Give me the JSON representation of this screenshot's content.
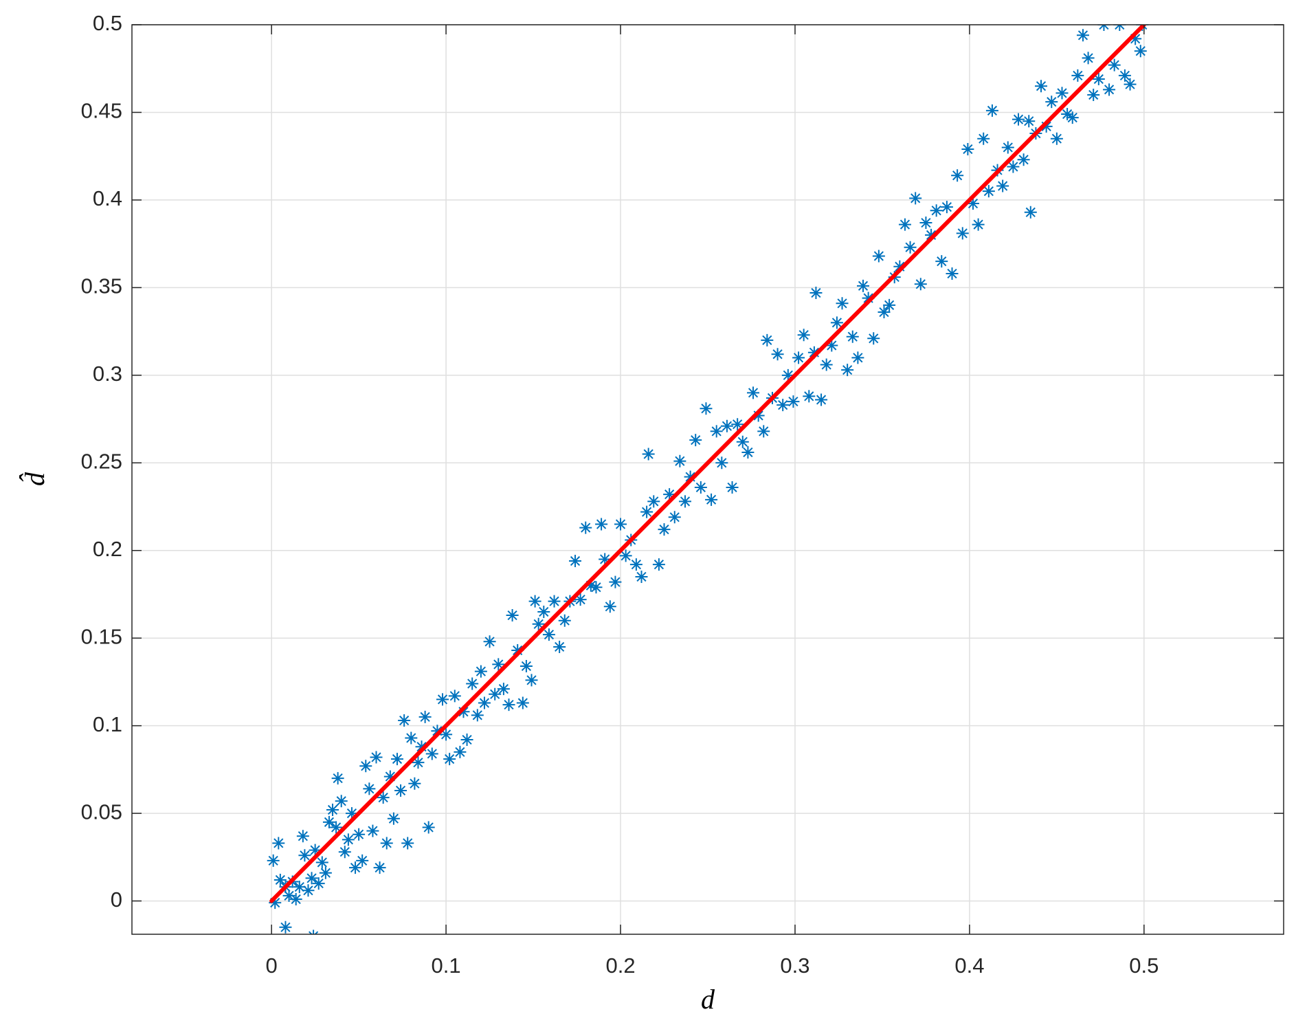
{
  "chart_data": {
    "type": "scatter",
    "xlabel": "d",
    "ylabel": "d̂",
    "xlim": [
      -0.08,
      0.58
    ],
    "ylim": [
      -0.019,
      0.5
    ],
    "xticks": [
      0,
      0.1,
      0.2,
      0.3,
      0.4,
      0.5
    ],
    "yticks": [
      0,
      0.05,
      0.1,
      0.15,
      0.2,
      0.25,
      0.3,
      0.35,
      0.4,
      0.45,
      0.5
    ],
    "grid": true,
    "series": [
      {
        "color": "#0072bd",
        "marker": "asterisk",
        "x": [
          0.001,
          0.002,
          0.004,
          0.005,
          0.008,
          0.008,
          0.01,
          0.012,
          0.014,
          0.016,
          0.018,
          0.019,
          0.021,
          0.023,
          0.024,
          0.025,
          0.027,
          0.029,
          0.031,
          0.033,
          0.035,
          0.037,
          0.038,
          0.04,
          0.042,
          0.044,
          0.046,
          0.048,
          0.05,
          0.052,
          0.054,
          0.056,
          0.058,
          0.06,
          0.062,
          0.064,
          0.066,
          0.068,
          0.07,
          0.072,
          0.074,
          0.076,
          0.078,
          0.08,
          0.082,
          0.084,
          0.086,
          0.088,
          0.09,
          0.092,
          0.095,
          0.098,
          0.1,
          0.102,
          0.105,
          0.108,
          0.11,
          0.112,
          0.115,
          0.118,
          0.12,
          0.122,
          0.125,
          0.128,
          0.13,
          0.133,
          0.136,
          0.138,
          0.141,
          0.144,
          0.146,
          0.149,
          0.151,
          0.153,
          0.156,
          0.159,
          0.162,
          0.165,
          0.168,
          0.171,
          0.174,
          0.177,
          0.18,
          0.183,
          0.186,
          0.189,
          0.191,
          0.194,
          0.197,
          0.2,
          0.203,
          0.206,
          0.209,
          0.212,
          0.215,
          0.216,
          0.219,
          0.222,
          0.225,
          0.228,
          0.231,
          0.234,
          0.237,
          0.24,
          0.243,
          0.246,
          0.249,
          0.252,
          0.255,
          0.258,
          0.261,
          0.264,
          0.267,
          0.27,
          0.273,
          0.276,
          0.279,
          0.282,
          0.284,
          0.287,
          0.29,
          0.293,
          0.296,
          0.299,
          0.302,
          0.305,
          0.308,
          0.311,
          0.312,
          0.315,
          0.318,
          0.321,
          0.324,
          0.327,
          0.33,
          0.333,
          0.336,
          0.339,
          0.342,
          0.345,
          0.348,
          0.351,
          0.354,
          0.357,
          0.36,
          0.363,
          0.366,
          0.369,
          0.372,
          0.375,
          0.378,
          0.381,
          0.384,
          0.387,
          0.39,
          0.393,
          0.396,
          0.399,
          0.402,
          0.405,
          0.408,
          0.411,
          0.413,
          0.416,
          0.419,
          0.422,
          0.425,
          0.428,
          0.431,
          0.434,
          0.435,
          0.438,
          0.441,
          0.444,
          0.447,
          0.45,
          0.453,
          0.456,
          0.459,
          0.462,
          0.465,
          0.468,
          0.471,
          0.474,
          0.477,
          0.48,
          0.483,
          0.486,
          0.489,
          0.492,
          0.495,
          0.498,
          0.499
        ],
        "values": [
          0.023,
          -0.001,
          0.033,
          0.012,
          0.008,
          -0.015,
          0.003,
          0.011,
          0.001,
          0.008,
          0.037,
          0.026,
          0.006,
          0.013,
          -0.02,
          0.029,
          0.01,
          0.022,
          0.016,
          0.045,
          0.052,
          0.042,
          0.07,
          0.057,
          0.028,
          0.035,
          0.05,
          0.019,
          0.038,
          0.023,
          0.077,
          0.064,
          0.04,
          0.082,
          0.019,
          0.059,
          0.033,
          0.071,
          0.047,
          0.081,
          0.063,
          0.103,
          0.033,
          0.093,
          0.067,
          0.079,
          0.088,
          0.105,
          0.042,
          0.084,
          0.097,
          0.115,
          0.095,
          0.081,
          0.117,
          0.085,
          0.108,
          0.092,
          0.124,
          0.106,
          0.131,
          0.113,
          0.148,
          0.118,
          0.135,
          0.121,
          0.112,
          0.163,
          0.143,
          0.113,
          0.134,
          0.126,
          0.171,
          0.158,
          0.165,
          0.152,
          0.171,
          0.145,
          0.16,
          0.171,
          0.194,
          0.172,
          0.213,
          0.18,
          0.179,
          0.215,
          0.195,
          0.168,
          0.182,
          0.215,
          0.197,
          0.206,
          0.192,
          0.185,
          0.222,
          0.255,
          0.228,
          0.192,
          0.212,
          0.232,
          0.219,
          0.251,
          0.228,
          0.242,
          0.263,
          0.236,
          0.281,
          0.229,
          0.268,
          0.25,
          0.271,
          0.236,
          0.272,
          0.262,
          0.256,
          0.29,
          0.277,
          0.268,
          0.32,
          0.287,
          0.312,
          0.283,
          0.3,
          0.285,
          0.31,
          0.323,
          0.288,
          0.313,
          0.347,
          0.286,
          0.306,
          0.317,
          0.33,
          0.341,
          0.303,
          0.322,
          0.31,
          0.351,
          0.344,
          0.321,
          0.368,
          0.336,
          0.34,
          0.356,
          0.362,
          0.386,
          0.373,
          0.401,
          0.352,
          0.387,
          0.38,
          0.394,
          0.365,
          0.396,
          0.358,
          0.414,
          0.381,
          0.429,
          0.398,
          0.386,
          0.435,
          0.405,
          0.451,
          0.417,
          0.408,
          0.43,
          0.419,
          0.446,
          0.423,
          0.445,
          0.393,
          0.438,
          0.465,
          0.442,
          0.456,
          0.435,
          0.461,
          0.449,
          0.447,
          0.471,
          0.494,
          0.481,
          0.46,
          0.469,
          0.5,
          0.463,
          0.477,
          0.5,
          0.471,
          0.466,
          0.492,
          0.485,
          0.5
        ]
      },
      {
        "color": "#ff0000",
        "style": "line",
        "x": [
          0,
          0.5
        ],
        "values": [
          0,
          0.5
        ]
      }
    ]
  }
}
